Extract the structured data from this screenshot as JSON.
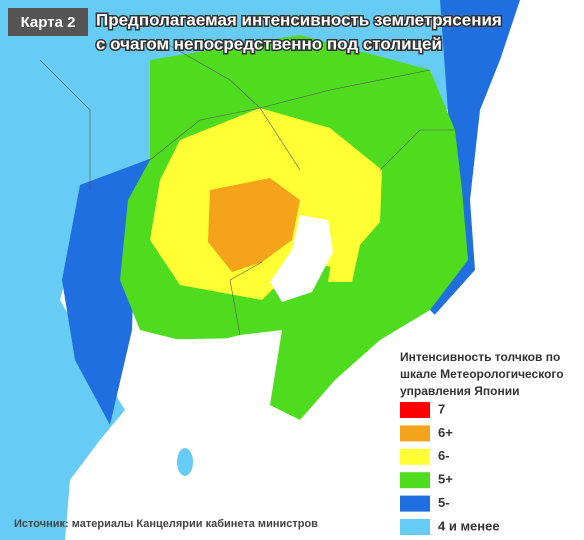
{
  "header": {
    "badge": "Карта 2",
    "title_lines": [
      "Предполагаемая интенсивность землетрясения",
      "с очагом непосредственно под столицей"
    ]
  },
  "legend": {
    "title_lines": [
      "Интенсивность толчков по",
      "шкале Метеорологического",
      "управления Японии"
    ],
    "items": [
      {
        "label": "7",
        "color": "#ff0000"
      },
      {
        "label": "6+",
        "color": "#f5a31a"
      },
      {
        "label": "6-",
        "color": "#ffff33"
      },
      {
        "label": "5+",
        "color": "#4fdc1e"
      },
      {
        "label": "5-",
        "color": "#1f6fe0"
      },
      {
        "label": "4 и менее",
        "color": "#66ccf5"
      }
    ]
  },
  "source": "Источник: материалы Канцелярии кабинета министров"
}
